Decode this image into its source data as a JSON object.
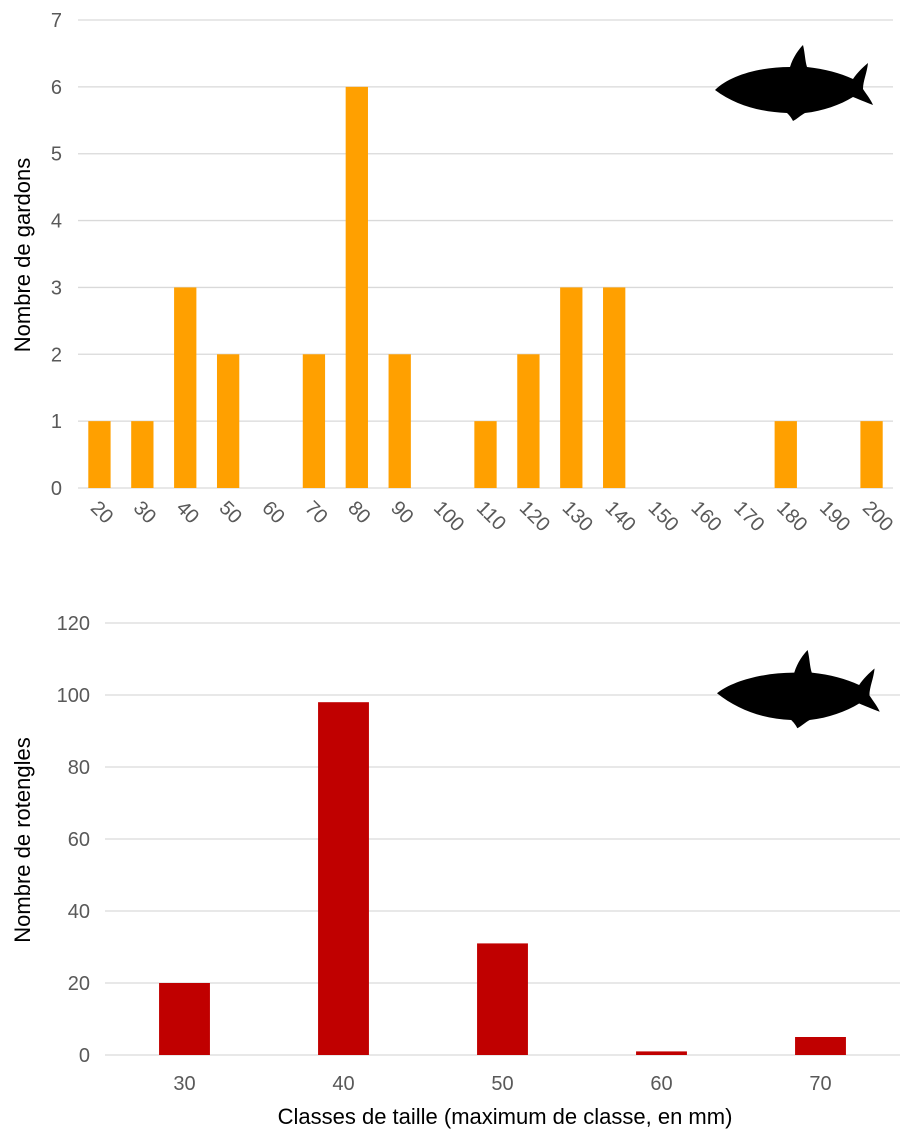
{
  "chart_data": [
    {
      "type": "bar",
      "ylabel": "Nombre de gardons",
      "xlabel": "",
      "categories": [
        "20",
        "30",
        "40",
        "50",
        "60",
        "70",
        "80",
        "90",
        "100",
        "110",
        "120",
        "130",
        "140",
        "150",
        "160",
        "170",
        "180",
        "190",
        "200"
      ],
      "values": [
        1,
        1,
        3,
        2,
        0,
        2,
        6,
        2,
        0,
        1,
        2,
        3,
        3,
        0,
        0,
        0,
        1,
        0,
        1
      ],
      "ylim": [
        0,
        7
      ],
      "yticks": [
        0,
        1,
        2,
        3,
        4,
        5,
        6,
        7
      ],
      "grid": true,
      "legend": "none",
      "bar_color": "#FFA000",
      "icon": "fish-icon"
    },
    {
      "type": "bar",
      "ylabel": "Nombre de rotengles",
      "xlabel": "Classes de taille (maximum de classe, en mm)",
      "categories": [
        "30",
        "40",
        "50",
        "60",
        "70"
      ],
      "values": [
        20,
        98,
        31,
        1,
        5
      ],
      "ylim": [
        0,
        120
      ],
      "yticks": [
        0,
        20,
        40,
        60,
        80,
        100,
        120
      ],
      "grid": true,
      "legend": "none",
      "bar_color": "#C00000",
      "icon": "fish-icon"
    }
  ]
}
